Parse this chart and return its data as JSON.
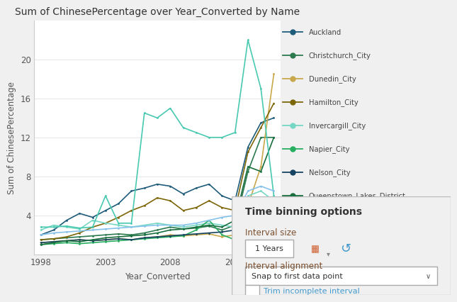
{
  "title": "Sum of ChinesePercentage over Year_Converted by Name",
  "xlabel": "Year_Converted",
  "ylabel": "Sum of ChinesePercentage",
  "years": [
    1998,
    1999,
    2000,
    2001,
    2002,
    2003,
    2004,
    2005,
    2006,
    2007,
    2008,
    2009,
    2010,
    2011,
    2012,
    2013,
    2014,
    2015,
    2016
  ],
  "series": {
    "Auckland": {
      "color": "#1f5c7a",
      "data": [
        2.0,
        2.5,
        3.5,
        4.2,
        3.8,
        4.5,
        5.2,
        6.5,
        6.8,
        7.2,
        7.0,
        6.2,
        6.8,
        7.2,
        6.0,
        5.5,
        11.0,
        13.5,
        14.0
      ]
    },
    "Christchurch_City": {
      "color": "#2d7a4f",
      "data": [
        1.5,
        1.6,
        1.7,
        1.8,
        1.9,
        2.0,
        2.1,
        2.0,
        2.2,
        2.5,
        2.8,
        2.6,
        2.7,
        2.9,
        2.5,
        3.0,
        8.5,
        12.0,
        12.0
      ]
    },
    "Dunedin_City": {
      "color": "#c8a84b",
      "data": [
        1.2,
        1.3,
        1.4,
        1.5,
        1.4,
        1.5,
        1.6,
        1.5,
        1.7,
        1.8,
        2.0,
        1.9,
        2.0,
        2.1,
        1.8,
        2.0,
        5.0,
        9.0,
        18.5
      ]
    },
    "Hamilton_City": {
      "color": "#7d6608",
      "data": [
        1.5,
        1.6,
        1.8,
        2.2,
        2.8,
        3.2,
        3.8,
        4.5,
        5.0,
        5.8,
        5.5,
        4.5,
        4.8,
        5.5,
        4.8,
        4.5,
        10.5,
        13.0,
        15.5
      ]
    },
    "Invercargill_City": {
      "color": "#76d7c4",
      "data": [
        2.5,
        3.0,
        2.8,
        2.6,
        3.5,
        3.2,
        3.0,
        2.8,
        3.0,
        3.2,
        3.0,
        2.8,
        3.0,
        3.2,
        3.0,
        2.8,
        6.0,
        6.5,
        5.5
      ]
    },
    "Napier_City": {
      "color": "#27ae60",
      "data": [
        1.0,
        1.1,
        1.2,
        1.1,
        1.2,
        1.3,
        1.4,
        1.5,
        1.6,
        1.7,
        1.8,
        1.9,
        2.5,
        3.5,
        2.0,
        1.5,
        4.0,
        3.5,
        3.0
      ]
    },
    "Nelson_City": {
      "color": "#154360",
      "data": [
        1.2,
        1.3,
        1.4,
        1.5,
        1.4,
        1.5,
        1.6,
        1.5,
        1.7,
        1.8,
        1.9,
        2.0,
        2.1,
        2.2,
        2.3,
        2.5,
        2.8,
        3.0,
        5.0
      ]
    },
    "Queenstown_Lakes_District": {
      "color": "#196f3d",
      "data": [
        1.0,
        1.2,
        1.4,
        1.3,
        1.5,
        1.7,
        1.8,
        1.9,
        2.0,
        2.2,
        2.5,
        2.6,
        2.8,
        3.0,
        2.8,
        3.5,
        9.0,
        8.5,
        12.0
      ]
    },
    "Rotorua_District": {
      "color": "#48c9b0",
      "data": [
        2.8,
        2.8,
        2.9,
        2.7,
        2.8,
        6.0,
        3.2,
        3.2,
        14.5,
        14.0,
        15.0,
        13.0,
        12.5,
        12.0,
        12.0,
        12.5,
        22.0,
        17.0,
        6.0
      ]
    },
    "Wellington_City": {
      "color": "#85c1e9",
      "data": [
        2.0,
        2.2,
        2.3,
        2.4,
        2.5,
        2.6,
        2.7,
        2.8,
        2.9,
        3.0,
        3.0,
        3.0,
        3.2,
        3.5,
        3.8,
        4.0,
        6.5,
        7.0,
        6.5
      ]
    }
  },
  "xlim": [
    1997.5,
    2016.5
  ],
  "ylim": [
    0,
    24
  ],
  "yticks": [
    4,
    8,
    12,
    16,
    20
  ],
  "xticks": [
    1998,
    2003,
    2008,
    2013
  ],
  "chart_bg": "#ffffff",
  "fig_bg": "#f0f0f0",
  "panel_bg": "#f0f0f0",
  "panel_title": "Time binning options",
  "panel_title_color": "#333333",
  "label_color": "#7b4f2e",
  "text_color": "#555555",
  "grid_color": "#e8e8e8",
  "spine_color": "#cccccc"
}
